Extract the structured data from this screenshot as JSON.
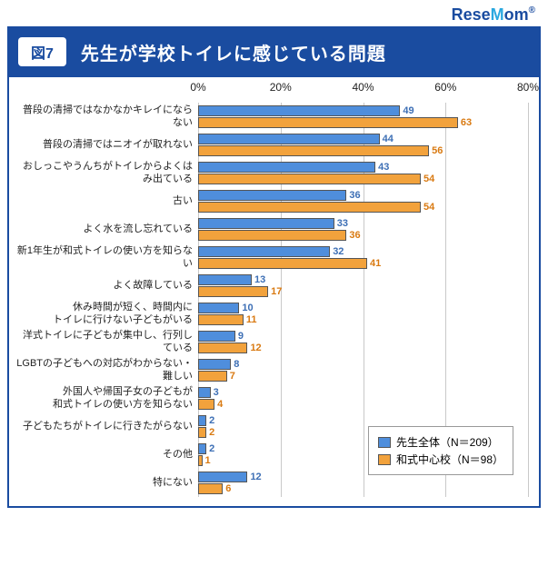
{
  "logo": {
    "brand_pre": "Rese",
    "brand_m": "M",
    "brand_post": "om",
    "tm": "®"
  },
  "chart": {
    "type": "bar",
    "badge": "図7",
    "title": "先生が学校トイレに感じている問題",
    "xmax": 80,
    "xtick_step": 20,
    "xtick_suffix": "%",
    "colors": {
      "series_a": "#4f8edc",
      "series_b": "#f2a23c",
      "series_a_val": "#3d6fb5",
      "series_b_val": "#d97a12",
      "band": "#1a4ca0",
      "grid": "#c9c9c9"
    },
    "legend": {
      "a": "先生全体（N＝209）",
      "b": "和式中心校（N＝98）"
    },
    "items": [
      {
        "label": "普段の清掃ではなかなかキレイにならない",
        "a": 49,
        "b": 63
      },
      {
        "label": "普段の清掃ではニオイが取れない",
        "a": 44,
        "b": 56
      },
      {
        "label": "おしっこやうんちがトイレからよくはみ出ている",
        "a": 43,
        "b": 54
      },
      {
        "label": "古い",
        "a": 36,
        "b": 54
      },
      {
        "label": "よく水を流し忘れている",
        "a": 33,
        "b": 36
      },
      {
        "label": "新1年生が和式トイレの使い方を知らない",
        "a": 32,
        "b": 41
      },
      {
        "label": "よく故障している",
        "a": 13,
        "b": 17
      },
      {
        "label": "休み時間が短く、時間内に\nトイレに行けない子どもがいる",
        "a": 10,
        "b": 11
      },
      {
        "label": "洋式トイレに子どもが集中し、行列している",
        "a": 9,
        "b": 12
      },
      {
        "label": "LGBTの子どもへの対応がわからない・難しい",
        "a": 8,
        "b": 7
      },
      {
        "label": "外国人や帰国子女の子どもが\n和式トイレの使い方を知らない",
        "a": 3,
        "b": 4
      },
      {
        "label": "子どもたちがトイレに行きたがらない",
        "a": 2,
        "b": 2
      },
      {
        "label": "その他",
        "a": 2,
        "b": 1
      },
      {
        "label": "特にない",
        "a": 12,
        "b": 6
      }
    ]
  }
}
